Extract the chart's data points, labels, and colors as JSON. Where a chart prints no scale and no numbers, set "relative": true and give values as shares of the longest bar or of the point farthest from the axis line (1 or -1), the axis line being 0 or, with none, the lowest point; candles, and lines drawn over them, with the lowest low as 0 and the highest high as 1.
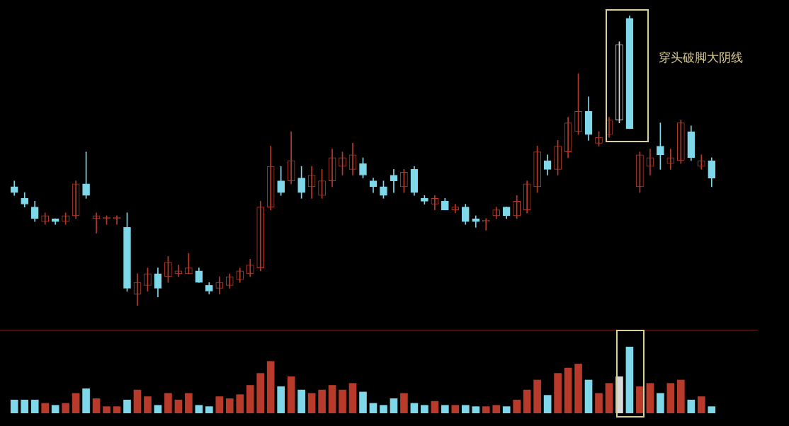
{
  "chart_data": [
    {
      "type": "candlestick",
      "relative": true,
      "annotations": [
        "穿头破脚大阴线"
      ],
      "categories": [
        null,
        null,
        null,
        null,
        null,
        null,
        null,
        null,
        null,
        null,
        null,
        null,
        null,
        null,
        null,
        null,
        null,
        null,
        null,
        null,
        null,
        null,
        null,
        null,
        null,
        null,
        null,
        null,
        null,
        null,
        null,
        null,
        null,
        null,
        null,
        null,
        null,
        null,
        null,
        null,
        null,
        null,
        null,
        null,
        null,
        null,
        null,
        null,
        null,
        null,
        null,
        null,
        null,
        null,
        null,
        null,
        null,
        null,
        null,
        null,
        null,
        null,
        null,
        null,
        null,
        null,
        null,
        null,
        null
      ],
      "ohlc": [
        [
          0.41,
          0.43,
          0.38,
          0.39
        ],
        [
          0.37,
          0.39,
          0.34,
          0.35
        ],
        [
          0.34,
          0.36,
          0.29,
          0.3
        ],
        [
          0.29,
          0.32,
          0.28,
          0.31
        ],
        [
          0.3,
          0.3,
          0.28,
          0.29
        ],
        [
          0.29,
          0.32,
          0.28,
          0.31
        ],
        [
          0.31,
          0.43,
          0.3,
          0.42
        ],
        [
          0.42,
          0.53,
          0.37,
          0.38
        ],
        [
          0.3,
          0.32,
          0.25,
          0.31
        ],
        [
          0.3,
          0.31,
          0.28,
          0.3
        ],
        [
          0.3,
          0.31,
          0.28,
          0.3
        ],
        [
          0.27,
          0.32,
          0.05,
          0.06
        ],
        [
          0.04,
          0.11,
          0,
          0.08
        ],
        [
          0.07,
          0.13,
          0.05,
          0.11
        ],
        [
          0.11,
          0.13,
          0.03,
          0.06
        ],
        [
          0.1,
          0.17,
          0.08,
          0.15
        ],
        [
          0.11,
          0.14,
          0.1,
          0.12
        ],
        [
          0.11,
          0.18,
          0.11,
          0.13
        ],
        [
          0.12,
          0.13,
          0.08,
          0.08
        ],
        [
          0.07,
          0.08,
          0.04,
          0.05
        ],
        [
          0.06,
          0.1,
          0.04,
          0.08
        ],
        [
          0.07,
          0.11,
          0.06,
          0.1
        ],
        [
          0.09,
          0.13,
          0.08,
          0.12
        ],
        [
          0.11,
          0.16,
          0.1,
          0.14
        ],
        [
          0.13,
          0.36,
          0.12,
          0.34
        ],
        [
          0.34,
          0.55,
          0.33,
          0.48
        ],
        [
          0.43,
          0.48,
          0.38,
          0.39
        ],
        [
          0.43,
          0.6,
          0.42,
          0.5
        ],
        [
          0.44,
          0.48,
          0.37,
          0.39
        ],
        [
          0.41,
          0.48,
          0.37,
          0.45
        ],
        [
          0.38,
          0.47,
          0.37,
          0.43
        ],
        [
          0.43,
          0.54,
          0.41,
          0.51
        ],
        [
          0.48,
          0.53,
          0.45,
          0.51
        ],
        [
          0.47,
          0.56,
          0.45,
          0.52
        ],
        [
          0.49,
          0.51,
          0.44,
          0.45
        ],
        [
          0.43,
          0.44,
          0.39,
          0.41
        ],
        [
          0.41,
          0.43,
          0.37,
          0.38
        ],
        [
          0.45,
          0.47,
          0.39,
          0.43
        ],
        [
          0.41,
          0.47,
          0.39,
          0.46
        ],
        [
          0.47,
          0.48,
          0.38,
          0.39
        ],
        [
          0.37,
          0.38,
          0.35,
          0.36
        ],
        [
          0.35,
          0.38,
          0.33,
          0.37
        ],
        [
          0.36,
          0.37,
          0.33,
          0.33
        ],
        [
          0.33,
          0.35,
          0.32,
          0.34
        ],
        [
          0.34,
          0.35,
          0.28,
          0.29
        ],
        [
          0.3,
          0.31,
          0.27,
          0.29
        ],
        [
          0.29,
          0.3,
          0.26,
          0.29
        ],
        [
          0.31,
          0.34,
          0.3,
          0.33
        ],
        [
          0.34,
          0.34,
          0.3,
          0.31
        ],
        [
          0.31,
          0.38,
          0.3,
          0.36
        ],
        [
          0.33,
          0.43,
          0.32,
          0.42
        ],
        [
          0.41,
          0.55,
          0.39,
          0.53
        ],
        [
          0.5,
          0.52,
          0.45,
          0.47
        ],
        [
          0.47,
          0.57,
          0.45,
          0.55
        ],
        [
          0.53,
          0.65,
          0.51,
          0.63
        ],
        [
          0.6,
          0.8,
          0.59,
          0.67
        ],
        [
          0.67,
          0.72,
          0.57,
          0.59
        ],
        [
          0.56,
          0.6,
          0.55,
          0.58
        ],
        [
          0.59,
          0.65,
          0.58,
          0.64
        ],
        [
          0.64,
          0.91,
          0.63,
          0.9
        ],
        [
          0.99,
          1,
          0.61,
          0.61
        ],
        [
          0.41,
          0.53,
          0.39,
          0.52
        ],
        [
          0.48,
          0.54,
          0.45,
          0.51
        ],
        [
          0.55,
          0.63,
          0.47,
          0.52
        ],
        [
          0.49,
          0.54,
          0.47,
          0.51
        ],
        [
          0.5,
          0.64,
          0.49,
          0.63
        ],
        [
          0.6,
          0.62,
          0.5,
          0.51
        ],
        [
          0.48,
          0.52,
          0.47,
          0.5
        ],
        [
          0.5,
          0.51,
          0.41,
          0.44
        ]
      ],
      "colors": [
        "#7fd8ea",
        "#7fd8ea",
        "#7fd8ea",
        "#b83a2a",
        "#7fd8ea",
        "#b83a2a",
        "#b83a2a",
        "#7fd8ea",
        "#b83a2a",
        "#b83a2a",
        "#b83a2a",
        "#7fd8ea",
        "#b83a2a",
        "#b83a2a",
        "#7fd8ea",
        "#b83a2a",
        "#b83a2a",
        "#b83a2a",
        "#7fd8ea",
        "#7fd8ea",
        "#b83a2a",
        "#b83a2a",
        "#b83a2a",
        "#b83a2a",
        "#b83a2a",
        "#b83a2a",
        "#7fd8ea",
        "#b83a2a",
        "#7fd8ea",
        "#b83a2a",
        "#b83a2a",
        "#b83a2a",
        "#b83a2a",
        "#b83a2a",
        "#7fd8ea",
        "#7fd8ea",
        "#7fd8ea",
        "#7fd8ea",
        "#b83a2a",
        "#7fd8ea",
        "#7fd8ea",
        "#b83a2a",
        "#7fd8ea",
        "#b83a2a",
        "#7fd8ea",
        "#7fd8ea",
        "#b83a2a",
        "#b83a2a",
        "#7fd8ea",
        "#b83a2a",
        "#b83a2a",
        "#b83a2a",
        "#7fd8ea",
        "#b83a2a",
        "#b83a2a",
        "#b83a2a",
        "#7fd8ea",
        "#b83a2a",
        "#b83a2a",
        "#d8d8d8",
        "#7fd8ea",
        "#b83a2a",
        "#b83a2a",
        "#7fd8ea",
        "#b83a2a",
        "#b83a2a",
        "#7fd8ea",
        "#b83a2a",
        "#7fd8ea"
      ]
    },
    {
      "type": "bar",
      "relative": true,
      "categories": [
        null,
        null,
        null,
        null,
        null,
        null,
        null,
        null,
        null,
        null,
        null,
        null,
        null,
        null,
        null,
        null,
        null,
        null,
        null,
        null,
        null,
        null,
        null,
        null,
        null,
        null,
        null,
        null,
        null,
        null,
        null,
        null,
        null,
        null,
        null,
        null,
        null,
        null,
        null,
        null,
        null,
        null,
        null,
        null,
        null,
        null,
        null,
        null,
        null,
        null,
        null,
        null,
        null,
        null,
        null,
        null,
        null,
        null,
        null,
        null,
        null,
        null,
        null,
        null,
        null,
        null,
        null,
        null,
        null
      ],
      "values": [
        0.2,
        0.2,
        0.2,
        0.15,
        0.12,
        0.15,
        0.3,
        0.37,
        0.22,
        0.1,
        0.1,
        0.2,
        0.35,
        0.25,
        0.12,
        0.3,
        0.2,
        0.3,
        0.12,
        0.1,
        0.25,
        0.22,
        0.28,
        0.42,
        0.6,
        0.78,
        0.4,
        0.55,
        0.35,
        0.3,
        0.35,
        0.42,
        0.35,
        0.45,
        0.32,
        0.15,
        0.12,
        0.22,
        0.3,
        0.15,
        0.12,
        0.18,
        0.12,
        0.12,
        0.12,
        0.1,
        0.1,
        0.12,
        0.1,
        0.2,
        0.35,
        0.5,
        0.27,
        0.6,
        0.68,
        0.74,
        0.5,
        0.3,
        0.45,
        0.55,
        1,
        0.4,
        0.45,
        0.3,
        0.45,
        0.5,
        0.2,
        0.25,
        0.1
      ],
      "colors": [
        "#7fd8ea",
        "#7fd8ea",
        "#7fd8ea",
        "#b83a2a",
        "#7fd8ea",
        "#b83a2a",
        "#b83a2a",
        "#7fd8ea",
        "#b83a2a",
        "#b83a2a",
        "#b83a2a",
        "#7fd8ea",
        "#b83a2a",
        "#b83a2a",
        "#7fd8ea",
        "#b83a2a",
        "#b83a2a",
        "#b83a2a",
        "#7fd8ea",
        "#7fd8ea",
        "#b83a2a",
        "#b83a2a",
        "#b83a2a",
        "#b83a2a",
        "#b83a2a",
        "#b83a2a",
        "#7fd8ea",
        "#b83a2a",
        "#7fd8ea",
        "#b83a2a",
        "#b83a2a",
        "#b83a2a",
        "#b83a2a",
        "#b83a2a",
        "#7fd8ea",
        "#7fd8ea",
        "#7fd8ea",
        "#7fd8ea",
        "#b83a2a",
        "#7fd8ea",
        "#7fd8ea",
        "#b83a2a",
        "#7fd8ea",
        "#b83a2a",
        "#7fd8ea",
        "#7fd8ea",
        "#b83a2a",
        "#b83a2a",
        "#7fd8ea",
        "#b83a2a",
        "#b83a2a",
        "#b83a2a",
        "#7fd8ea",
        "#b83a2a",
        "#b83a2a",
        "#b83a2a",
        "#7fd8ea",
        "#b83a2a",
        "#b83a2a",
        "#d8d8d8",
        "#7fd8ea",
        "#b83a2a",
        "#b83a2a",
        "#7fd8ea",
        "#b83a2a",
        "#b83a2a",
        "#7fd8ea",
        "#b83a2a",
        "#7fd8ea"
      ]
    }
  ]
}
